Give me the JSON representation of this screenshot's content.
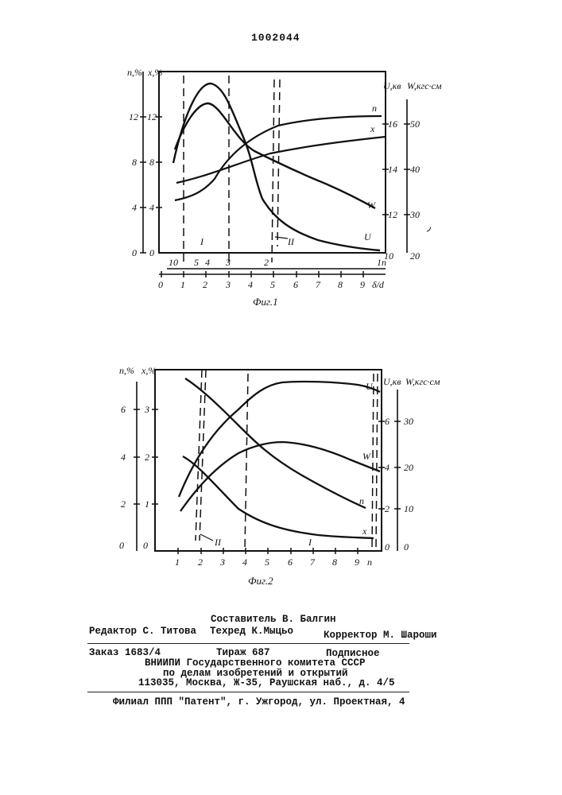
{
  "header": {
    "patent_number": "1002044"
  },
  "fig1": {
    "caption": "Фиг.1",
    "axis_labels": {
      "n": "n,%",
      "x": "x,%",
      "u": "U,кв",
      "w": "W,кгс·см",
      "n_scale": "n",
      "ratio": "δ/d",
      "marker": "٫"
    },
    "n_ticks": [
      "0",
      "4",
      "8",
      "12"
    ],
    "x_ticks": [
      "0",
      "4",
      "8",
      "12"
    ],
    "u_ticks": [
      "10",
      "12",
      "14",
      "16"
    ],
    "w_ticks": [
      "20",
      "30",
      "40",
      "50"
    ],
    "n_scale_ticks": [
      "10",
      "5",
      "4",
      "3",
      "2",
      "1"
    ],
    "ratio_ticks": [
      "0",
      "1",
      "2",
      "3",
      "4",
      "5",
      "6",
      "7",
      "8",
      "9"
    ],
    "curve_labels": [
      "n",
      "x",
      "W",
      "U"
    ],
    "zone_labels": [
      "I",
      "II"
    ]
  },
  "fig2": {
    "caption": "Фиг.2",
    "axis_labels": {
      "n": "n,%",
      "x": "x,%",
      "u": "U,кв",
      "w": "W,кгс·см",
      "n_scale": "n"
    },
    "n_ticks": [
      "0",
      "2",
      "4",
      "6"
    ],
    "x_ticks": [
      "0",
      "1",
      "2",
      "3"
    ],
    "u_ticks": [
      "0",
      "2",
      "4",
      "6"
    ],
    "w_ticks": [
      "0",
      "10",
      "20",
      "30"
    ],
    "n_scale_ticks": [
      "1",
      "2",
      "3",
      "4",
      "5",
      "6",
      "7",
      "8",
      "9"
    ],
    "curve_labels": [
      "U",
      "W",
      "n",
      "x"
    ],
    "zone_labels": [
      "I",
      "II"
    ]
  },
  "footer": {
    "composer": "Составитель В. Балгин",
    "editor": "Редактор С. Титова",
    "techred": "Техред К.Мыцьо",
    "corrector": "Корректор М. Шароши",
    "order": "Заказ 1683/4",
    "circulation": "Тираж 687",
    "subscription": "Подписное",
    "org_line1": "ВНИИПИ Государственного комитета СССР",
    "org_line2": "по делам изобретений и открытий",
    "address": "113035, Москва, Ж-35, Раушская наб., д. 4/5",
    "branch": "Филиал ППП \"Патент\", г. Ужгород, ул. Проектная, 4"
  }
}
